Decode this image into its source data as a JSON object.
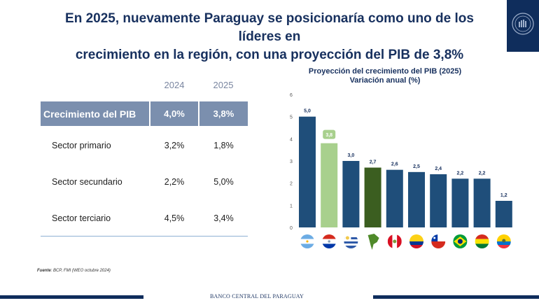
{
  "header": {
    "title_line1": "En 2025, nuevamente Paraguay se posicionaría como uno de los líderes en",
    "title_line2": "crecimiento en la región, con una proyección del PIB de 3,8%",
    "logo": "bcp-seal-icon"
  },
  "table": {
    "years": [
      "2024",
      "2025"
    ],
    "highlight_row": {
      "label": "Crecimiento del PIB",
      "values": [
        "4,0%",
        "3,8%"
      ]
    },
    "rows": [
      {
        "label": "Sector primario",
        "values": [
          "3,2%",
          "1,8%"
        ]
      },
      {
        "label": "Sector secundario",
        "values": [
          "2,2%",
          "5,0%"
        ]
      },
      {
        "label": "Sector terciario",
        "values": [
          "4,5%",
          "3,4%"
        ]
      }
    ]
  },
  "chart_data": {
    "type": "bar",
    "title": "Proyección del crecimiento del PIB (2025)",
    "subtitle": "Variación anual (%)",
    "xlabel": "",
    "ylabel": "",
    "ylim": [
      0,
      6
    ],
    "yticks": [
      "0",
      "1",
      "2",
      "3",
      "4",
      "5",
      "6"
    ],
    "grid": false,
    "categories": [
      "Argentina",
      "Paraguay",
      "Uruguay",
      "América del Sur",
      "Perú",
      "Colombia",
      "Chile",
      "Brasil",
      "Bolivia",
      "Ecuador"
    ],
    "category_icons": [
      "flag-argentina-icon",
      "flag-paraguay-icon",
      "flag-uruguay-icon",
      "south-america-map-icon",
      "flag-peru-icon",
      "flag-colombia-icon",
      "flag-chile-icon",
      "flag-brazil-icon",
      "flag-bolivia-icon",
      "flag-ecuador-icon"
    ],
    "values": [
      5.0,
      3.8,
      3.0,
      2.7,
      2.6,
      2.5,
      2.4,
      2.2,
      2.2,
      1.2
    ],
    "labels": [
      "5,0",
      "3,8",
      "3,0",
      "2,7",
      "2,6",
      "2,5",
      "2,4",
      "2,2",
      "2,2",
      "1,2"
    ],
    "colors": [
      "#1f4e7a",
      "#a8d08d",
      "#1f4e7a",
      "#3b5e20",
      "#1f4e7a",
      "#1f4e7a",
      "#1f4e7a",
      "#1f4e7a",
      "#1f4e7a",
      "#1f4e7a"
    ],
    "highlight_label_index": 1
  },
  "footer": {
    "source_label": "Fuente",
    "source_text": ": BCP, FMI (WEO octubre 2024)",
    "org_name": "BANCO CENTRAL DEL PARAGUAY"
  },
  "colors": {
    "navy": "#0f2d5c",
    "title": "#17305e",
    "table_header": "#7b8fae",
    "bar": "#1f4e7a",
    "paraguay_bar": "#a8d08d",
    "region_bar": "#3b5e20"
  }
}
